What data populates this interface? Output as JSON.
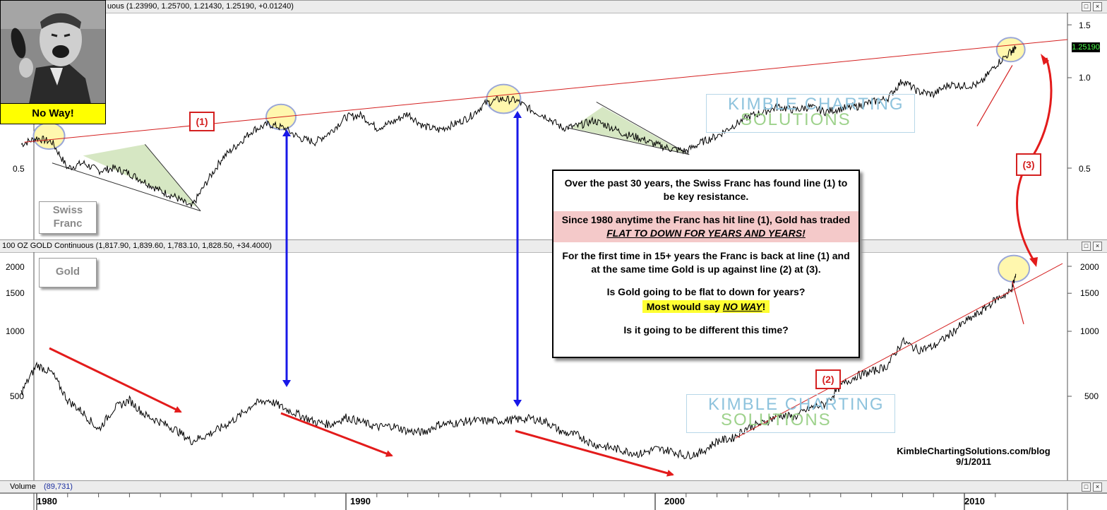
{
  "franc_panel": {
    "header_text": "uous (1.23990, 1.25700, 1.21430, 1.25190, +0.01240)",
    "label": "Swiss Franc",
    "last_price": "1.25190",
    "right_ticks": [
      "1.5",
      "1.0",
      "0.5"
    ],
    "left_ticks": [
      "0.5"
    ]
  },
  "gold_panel": {
    "header_text": "100 OZ GOLD Continuous (1,817.90, 1,839.60, 1,783.10, 1,828.50, +34.4000)",
    "label": "Gold",
    "right_ticks": [
      "2000",
      "1500",
      "1000",
      "500"
    ],
    "left_ticks": [
      "2000",
      "1500",
      "1000",
      "500"
    ]
  },
  "volume_panel": {
    "header_label": "Volume",
    "header_value": "(89,731)"
  },
  "meme": {
    "caption": "No Way!"
  },
  "markers": {
    "line1": "(1)",
    "line2": "(2)",
    "line3": "(3)"
  },
  "annotation": {
    "p1": "Over the past 30 years, the Swiss Franc has found line (1) to be key resistance.",
    "p2_prefix": "Since 1980 anytime the Franc has hit line (1), Gold has traded ",
    "p2_emph": "FLAT TO DOWN FOR YEARS AND YEARS!",
    "p3": "For the first time in 15+ years the Franc is back at line (1) and at the same time Gold is up against line (2) at (3).",
    "p4": "Is Gold going to be flat to down for years?",
    "p5_prefix": "Most would say ",
    "p5_emph": "NO WAY",
    "p5_suffix": "!",
    "p6": "Is it going to be different this time?"
  },
  "watermark": {
    "line_a": "KIMBLE CHARTING",
    "line_b": "SOLUTIONS"
  },
  "credit": {
    "site": "KimbleChartingSolutions.com/blog",
    "date": "9/1/2011"
  },
  "x_axis": [
    "1980",
    "1990",
    "2000",
    "2010"
  ],
  "window_buttons": {
    "restore": "□",
    "close": "×"
  },
  "chart_data": [
    {
      "type": "line",
      "title": "Swiss Franc",
      "xlabel": "",
      "ylabel": "",
      "scale": "log",
      "ylim": [
        0.33,
        1.6
      ],
      "x": [
        1979.5,
        1980.0,
        1980.5,
        1981.0,
        1981.5,
        1982.0,
        1982.5,
        1983.0,
        1983.5,
        1984.0,
        1984.5,
        1985.0,
        1985.5,
        1986.0,
        1986.5,
        1987.0,
        1987.5,
        1988.0,
        1988.5,
        1989.0,
        1989.5,
        1990.0,
        1990.5,
        1991.0,
        1991.5,
        1992.0,
        1992.5,
        1993.0,
        1993.5,
        1994.0,
        1994.5,
        1995.0,
        1995.5,
        1996.0,
        1996.5,
        1997.0,
        1997.5,
        1998.0,
        1998.5,
        1999.0,
        1999.5,
        2000.0,
        2000.5,
        2001.0,
        2001.5,
        2002.0,
        2002.5,
        2003.0,
        2003.5,
        2004.0,
        2004.5,
        2005.0,
        2005.5,
        2006.0,
        2006.5,
        2007.0,
        2007.5,
        2008.0,
        2008.5,
        2009.0,
        2009.5,
        2010.0,
        2010.5,
        2011.0,
        2011.5,
        2011.67
      ],
      "values": [
        0.6,
        0.63,
        0.61,
        0.5,
        0.52,
        0.49,
        0.5,
        0.48,
        0.45,
        0.42,
        0.4,
        0.37,
        0.45,
        0.54,
        0.6,
        0.67,
        0.7,
        0.68,
        0.63,
        0.61,
        0.66,
        0.74,
        0.75,
        0.68,
        0.71,
        0.76,
        0.69,
        0.67,
        0.7,
        0.74,
        0.82,
        0.85,
        0.84,
        0.78,
        0.74,
        0.68,
        0.69,
        0.72,
        0.69,
        0.65,
        0.63,
        0.6,
        0.58,
        0.57,
        0.61,
        0.64,
        0.69,
        0.74,
        0.77,
        0.8,
        0.78,
        0.8,
        0.77,
        0.79,
        0.8,
        0.83,
        0.85,
        0.98,
        0.9,
        0.88,
        0.95,
        0.94,
        0.95,
        1.1,
        1.22,
        1.2519
      ]
    },
    {
      "type": "line",
      "title": "Gold",
      "xlabel": "",
      "ylabel": "",
      "scale": "log",
      "ylim": [
        250,
        2250
      ],
      "x": [
        1979.5,
        1980.0,
        1980.5,
        1981.0,
        1981.5,
        1982.0,
        1982.5,
        1983.0,
        1983.5,
        1984.0,
        1984.5,
        1985.0,
        1985.5,
        1986.0,
        1986.5,
        1987.0,
        1987.5,
        1988.0,
        1988.5,
        1989.0,
        1989.5,
        1990.0,
        1990.5,
        1991.0,
        1991.5,
        1992.0,
        1992.5,
        1993.0,
        1993.5,
        1994.0,
        1994.5,
        1995.0,
        1995.5,
        1996.0,
        1996.5,
        1997.0,
        1997.5,
        1998.0,
        1998.5,
        1999.0,
        1999.5,
        2000.0,
        2000.5,
        2001.0,
        2001.5,
        2002.0,
        2002.5,
        2003.0,
        2003.5,
        2004.0,
        2004.5,
        2005.0,
        2005.5,
        2006.0,
        2006.5,
        2007.0,
        2007.5,
        2008.0,
        2008.5,
        2009.0,
        2009.5,
        2010.0,
        2010.5,
        2011.0,
        2011.5,
        2011.67
      ],
      "values": [
        520,
        700,
        640,
        480,
        420,
        350,
        440,
        480,
        410,
        380,
        350,
        310,
        330,
        360,
        400,
        460,
        480,
        440,
        410,
        380,
        370,
        400,
        380,
        360,
        365,
        345,
        340,
        370,
        375,
        385,
        385,
        385,
        390,
        395,
        380,
        340,
        330,
        300,
        290,
        280,
        270,
        285,
        280,
        265,
        275,
        310,
        320,
        360,
        375,
        410,
        400,
        440,
        460,
        560,
        620,
        650,
        690,
        900,
        820,
        850,
        960,
        1100,
        1220,
        1400,
        1530,
        1828.5
      ]
    }
  ]
}
